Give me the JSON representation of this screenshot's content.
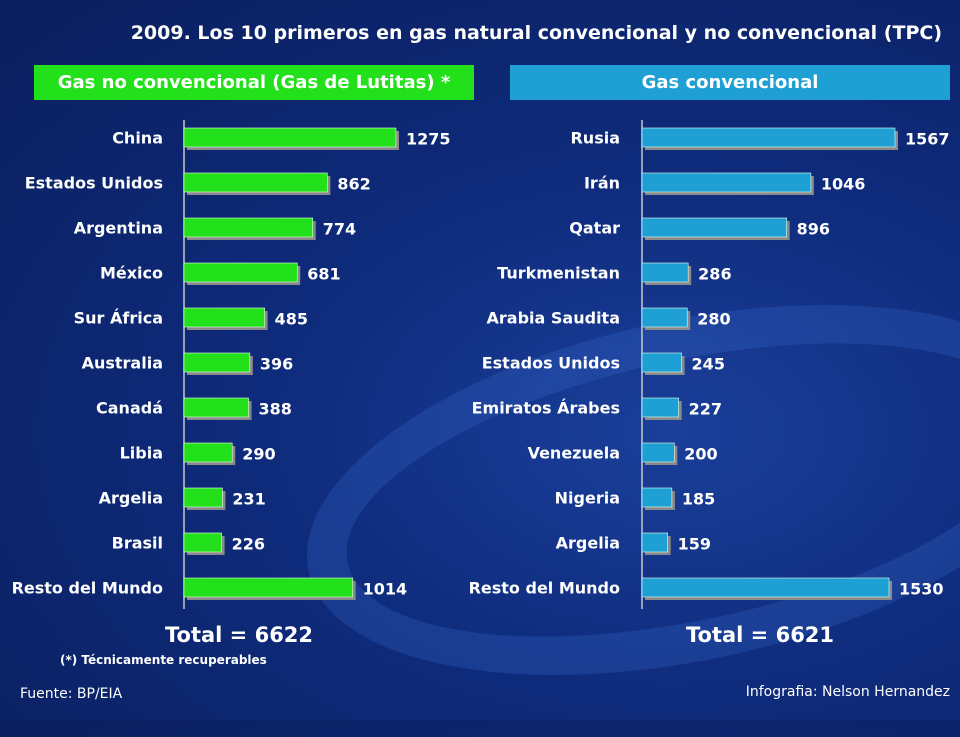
{
  "title": "2009. Los 10 primeros en gas natural convencional y no convencional (TPC)",
  "note": "(*) Técnicamente recuperables",
  "source": "Fuente: BP/EIA",
  "credit": "Infografia: Nelson Hernandez",
  "chart_data": [
    {
      "type": "bar",
      "orientation": "horizontal",
      "title": "Gas no convencional (Gas de Lutitas) *",
      "categories": [
        "China",
        "Estados Unidos",
        "Argentina",
        "México",
        "Sur África",
        "Australia",
        "Canadá",
        "Libia",
        "Argelia",
        "Brasil",
        "Resto del Mundo"
      ],
      "values": [
        1275,
        862,
        774,
        681,
        485,
        396,
        388,
        290,
        231,
        226,
        1014
      ],
      "total_label": "Total = 6622",
      "color": "#22e01a"
    },
    {
      "type": "bar",
      "orientation": "horizontal",
      "title": "Gas convencional",
      "categories": [
        "Rusia",
        "Irán",
        "Qatar",
        "Turkmenistan",
        "Arabia Saudita",
        "Estados Unidos",
        "Emiratos Árabes",
        "Venezuela",
        "Nigeria",
        "Argelia",
        "Resto del Mundo"
      ],
      "values": [
        1567,
        1046,
        896,
        286,
        280,
        245,
        227,
        200,
        185,
        159,
        1530
      ],
      "total_label": "Total = 6621",
      "color": "#1fa0d4"
    }
  ]
}
